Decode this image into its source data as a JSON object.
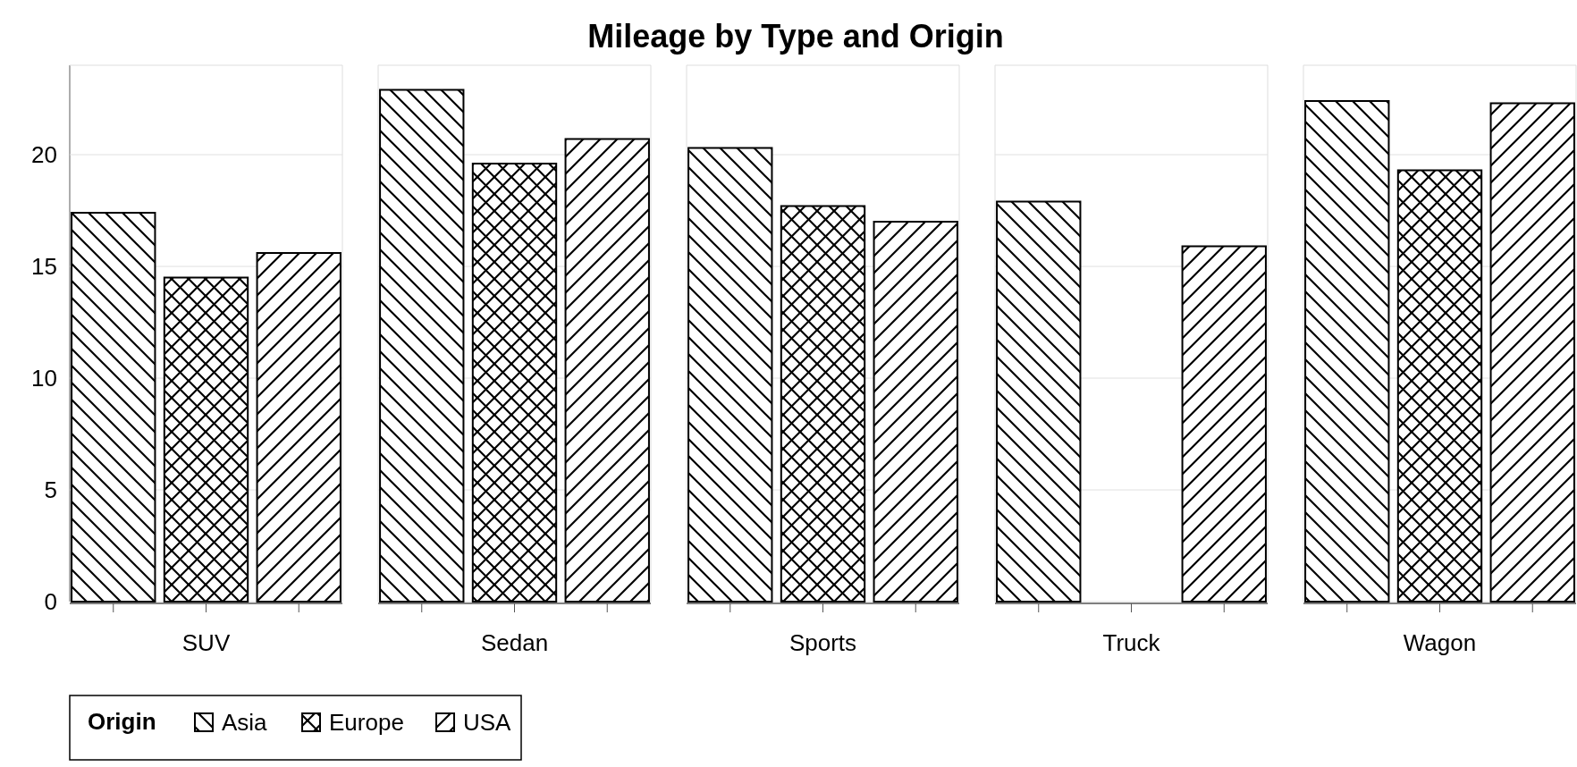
{
  "chart_data": {
    "type": "bar",
    "title": "Mileage by Type and Origin",
    "categories": [
      "SUV",
      "Sedan",
      "Sports",
      "Truck",
      "Wagon"
    ],
    "series": [
      {
        "name": "Asia",
        "color": "#000000",
        "values": [
          17.4,
          22.9,
          20.3,
          17.9,
          22.4
        ]
      },
      {
        "name": "Europe",
        "color": "#000000",
        "values": [
          14.5,
          19.6,
          17.7,
          null,
          19.3
        ]
      },
      {
        "name": "USA",
        "color": "#000000",
        "values": [
          15.6,
          20.7,
          17.0,
          15.9,
          22.3
        ]
      }
    ],
    "ylim": [
      0,
      24
    ],
    "yticks": [
      0,
      5,
      10,
      15,
      20
    ],
    "grid": "y",
    "legend": "bottom left",
    "legend_title": "Origin"
  }
}
